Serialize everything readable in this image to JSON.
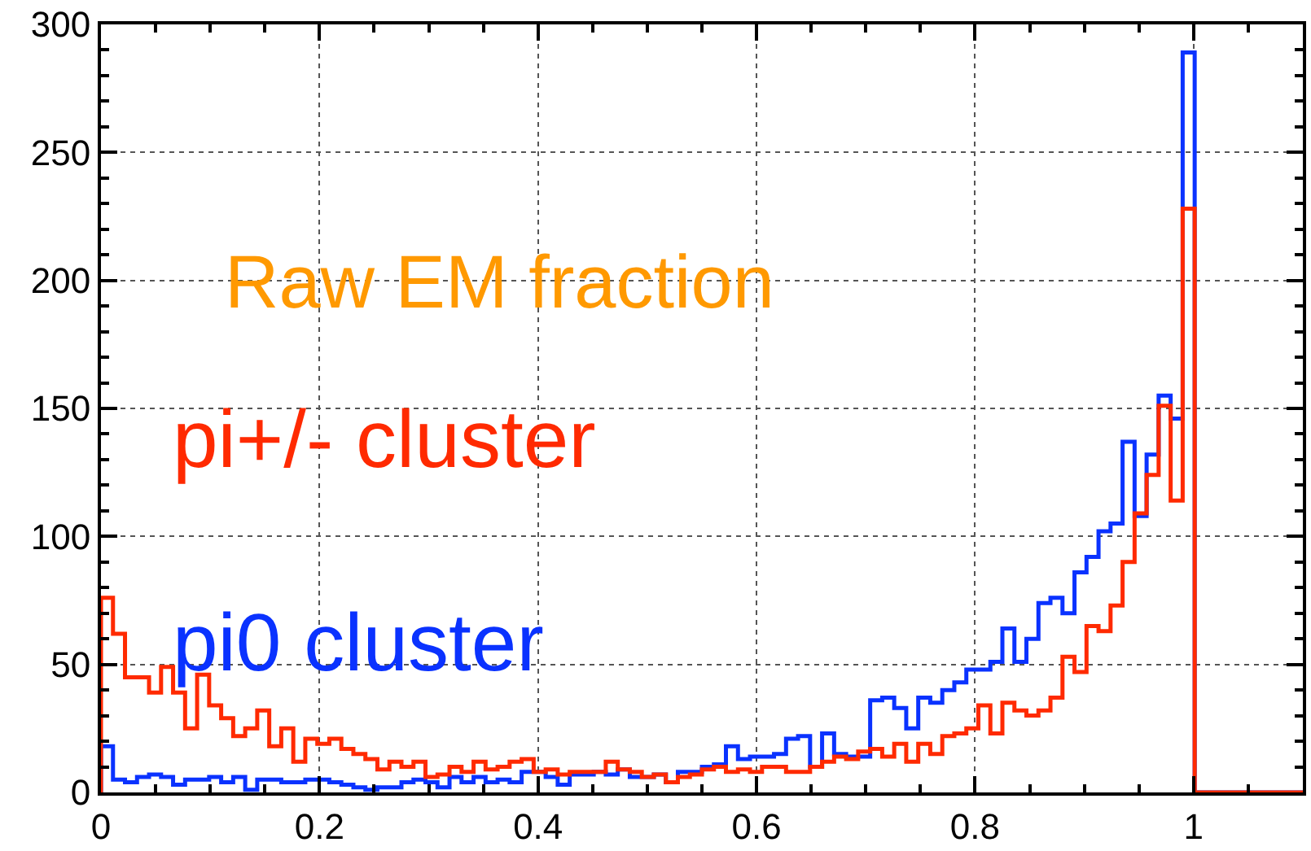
{
  "chart_data": {
    "type": "histogram",
    "title": "Raw EM fraction",
    "bins": [
      0,
      0.011,
      0.022,
      0.033,
      0.044,
      0.055,
      0.066,
      0.077,
      0.088,
      0.099,
      0.11,
      0.121,
      0.132,
      0.143,
      0.154,
      0.165,
      0.176,
      0.187,
      0.198,
      0.209,
      0.22,
      0.231,
      0.242,
      0.253,
      0.264,
      0.275,
      0.286,
      0.297,
      0.308,
      0.319,
      0.33,
      0.341,
      0.352,
      0.363,
      0.374,
      0.385,
      0.396,
      0.407,
      0.418,
      0.429,
      0.44,
      0.451,
      0.462,
      0.473,
      0.484,
      0.495,
      0.506,
      0.517,
      0.528,
      0.539,
      0.55,
      0.561,
      0.572,
      0.583,
      0.594,
      0.605,
      0.616,
      0.627,
      0.638,
      0.649,
      0.66,
      0.671,
      0.682,
      0.693,
      0.704,
      0.715,
      0.726,
      0.737,
      0.748,
      0.759,
      0.77,
      0.781,
      0.792,
      0.803,
      0.814,
      0.825,
      0.836,
      0.847,
      0.858,
      0.869,
      0.88,
      0.891,
      0.902,
      0.913,
      0.924,
      0.935,
      0.946,
      0.957,
      0.968,
      0.979,
      0.99,
      1.001,
      1.012,
      1.023,
      1.034,
      1.045,
      1.056,
      1.067,
      1.078,
      1.089,
      1.1
    ],
    "series": [
      {
        "name": "pi0 cluster",
        "color": "#0a32ff",
        "values": [
          18,
          5,
          4,
          6,
          7,
          6,
          3,
          5,
          5,
          6,
          4,
          6,
          1,
          5,
          5,
          4,
          4,
          5,
          5,
          4,
          3,
          2,
          1,
          2,
          2,
          4,
          5,
          4,
          2,
          6,
          4,
          6,
          4,
          5,
          4,
          8,
          8,
          6,
          3,
          7,
          7,
          8,
          7,
          9,
          6,
          6,
          7,
          4,
          8,
          8,
          10,
          11,
          18,
          13,
          14,
          14,
          15,
          21,
          22,
          10,
          23,
          15,
          14,
          14,
          36,
          37,
          33,
          25,
          37,
          35,
          40,
          43,
          48,
          48,
          51,
          64,
          51,
          60,
          74,
          76,
          70,
          86,
          92,
          102,
          105,
          137,
          108,
          132,
          155,
          146,
          289,
          0,
          0,
          0,
          0,
          0,
          0,
          0,
          0,
          0
        ]
      },
      {
        "name": "pi+/- cluster",
        "color": "#ff2a00",
        "values": [
          76,
          62,
          45,
          45,
          39,
          49,
          39,
          25,
          46,
          34,
          29,
          22,
          25,
          32,
          18,
          25,
          12,
          21,
          19,
          21,
          17,
          15,
          13,
          9,
          12,
          10,
          12,
          6,
          7,
          10,
          8,
          12,
          9,
          10,
          12,
          13,
          8,
          9,
          7,
          8,
          8,
          8,
          12,
          9,
          8,
          6,
          7,
          4,
          6,
          7,
          9,
          10,
          8,
          9,
          8,
          10,
          10,
          8,
          8,
          10,
          12,
          14,
          13,
          16,
          17,
          14,
          19,
          12,
          19,
          15,
          22,
          23,
          25,
          34,
          23,
          35,
          32,
          30,
          32,
          37,
          53,
          47,
          65,
          63,
          73,
          90,
          109,
          124,
          151,
          114,
          228,
          0,
          0,
          0,
          0,
          0,
          0,
          0,
          0,
          0
        ]
      }
    ],
    "xlim": [
      0,
      1.1
    ],
    "ylim": [
      0,
      300
    ],
    "xticks": [
      0,
      0.2,
      0.4,
      0.6,
      0.8,
      1
    ],
    "yticks": [
      0,
      50,
      100,
      150,
      200,
      250,
      300
    ],
    "grid": true,
    "legend": false
  }
}
